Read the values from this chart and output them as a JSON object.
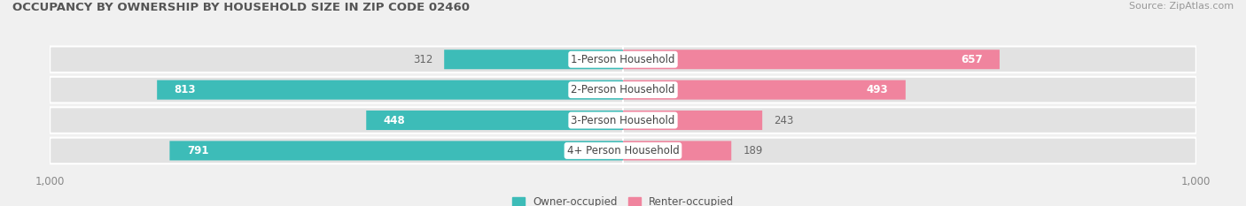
{
  "title": "OCCUPANCY BY OWNERSHIP BY HOUSEHOLD SIZE IN ZIP CODE 02460",
  "source": "Source: ZipAtlas.com",
  "categories": [
    "1-Person Household",
    "2-Person Household",
    "3-Person Household",
    "4+ Person Household"
  ],
  "owner_values": [
    312,
    813,
    448,
    791
  ],
  "renter_values": [
    657,
    493,
    243,
    189
  ],
  "owner_color": "#3DBCB8",
  "renter_color": "#F0849E",
  "bg_color": "#f0f0f0",
  "bar_bg_color": "#e2e2e2",
  "xlim": 1000,
  "legend_owner": "Owner-occupied",
  "legend_renter": "Renter-occupied",
  "title_fontsize": 9.5,
  "source_fontsize": 8,
  "label_fontsize": 8.5,
  "tick_fontsize": 8.5,
  "owner_inside_threshold": 400,
  "renter_inside_threshold": 400
}
